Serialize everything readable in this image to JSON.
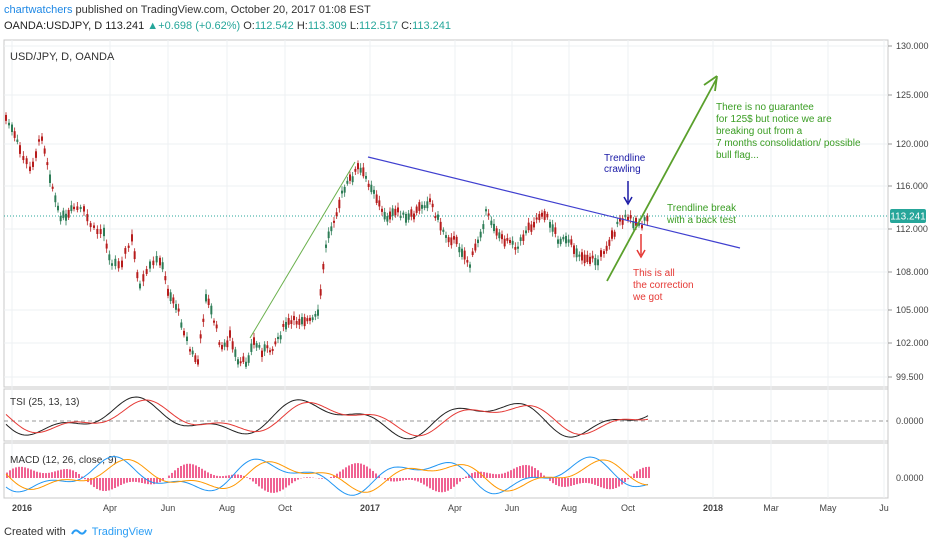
{
  "header": {
    "user": "chartwatchers",
    "published_text": " published on TradingView.com, October 20, 2017 01:08 EST",
    "symbol_line": "OANDA:USDJPY, D",
    "last": "113.241",
    "change": "+0.698 (+0.62%)",
    "o_label": "O:",
    "o": "112.542",
    "h_label": "H:",
    "h": "113.309",
    "l_label": "L:",
    "l": "112.517",
    "c_label": "C:",
    "c": "113.241",
    "up_arrow": "▲"
  },
  "chart_data": {
    "type": "candlestick",
    "title": "USD/JPY, D, OANDA",
    "y_ticks": [
      "130.000",
      "125.000",
      "120.000",
      "116.000",
      "112.000",
      "108.000",
      "105.000",
      "102.000",
      "99.500"
    ],
    "last_price_label": "113.241",
    "x_ticks": [
      "2016",
      "Apr",
      "Jun",
      "Aug",
      "Oct",
      "2017",
      "Apr",
      "Jun",
      "Aug",
      "Oct",
      "2018",
      "Mar",
      "May",
      "Ju"
    ],
    "annotations": {
      "trendline_crawling": [
        "Trendline",
        "crawling"
      ],
      "trendline_break": [
        "Trendline break",
        "with a back test"
      ],
      "correction": [
        "This is all",
        "the correction",
        "we got"
      ],
      "guarantee": [
        "There is no guarantee",
        "for 125$ but notice we are",
        "breaking out from a",
        "7 months consolidation/ possible",
        "bull flag..."
      ]
    },
    "colors": {
      "up": "#2e7d57",
      "down": "#b71c1c",
      "trendline": "#3f3fcf",
      "arrow": "#5aa02c",
      "annotation_green": "#3a9d23",
      "annotation_red": "#e53935",
      "annotation_blue": "#1a1aa6"
    },
    "indicators": [
      {
        "name": "TSI (25, 13, 13)",
        "tick": "0.0000"
      },
      {
        "name": "MACD (12, 26, close, 9)",
        "tick": "0.0000"
      }
    ]
  },
  "footer": {
    "created_with": "Created with",
    "brand": "TradingView",
    "logo_icon": "tradingview-logo-icon"
  }
}
